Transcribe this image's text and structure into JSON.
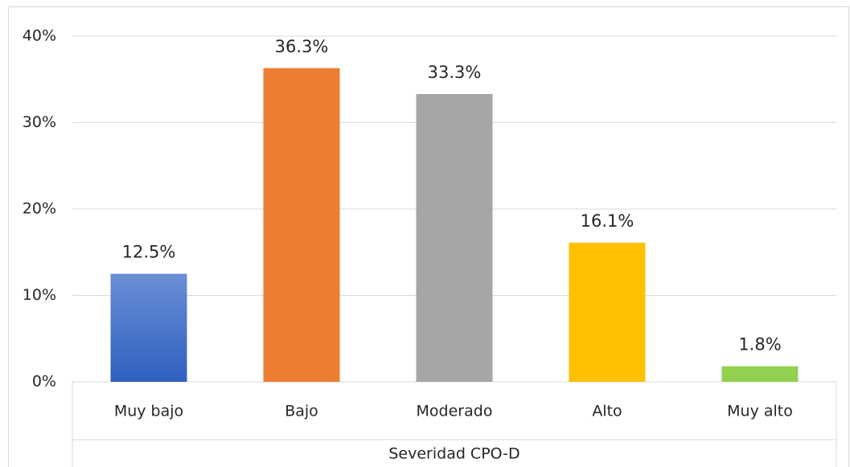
{
  "chart_data": {
    "type": "bar",
    "x_label": "Severidad CPO-D",
    "categories": [
      "Muy bajo",
      "Bajo",
      "Moderado",
      "Alto",
      "Muy alto"
    ],
    "values": [
      12.5,
      36.3,
      33.3,
      16.1,
      1.8
    ],
    "value_labels": [
      "12.5%",
      "36.3%",
      "33.3%",
      "16.1%",
      "1.8%"
    ],
    "colors": [
      "#4472c4",
      "#ed7d31",
      "#a5a5a5",
      "#ffc000",
      "#92d050"
    ],
    "ylim": [
      0,
      40
    ],
    "yticks": [
      {
        "value": 0,
        "label": "0%"
      },
      {
        "value": 10,
        "label": "10%"
      },
      {
        "value": 20,
        "label": "20%"
      },
      {
        "value": 30,
        "label": "30%"
      },
      {
        "value": 40,
        "label": "40%"
      }
    ],
    "grid": true
  }
}
